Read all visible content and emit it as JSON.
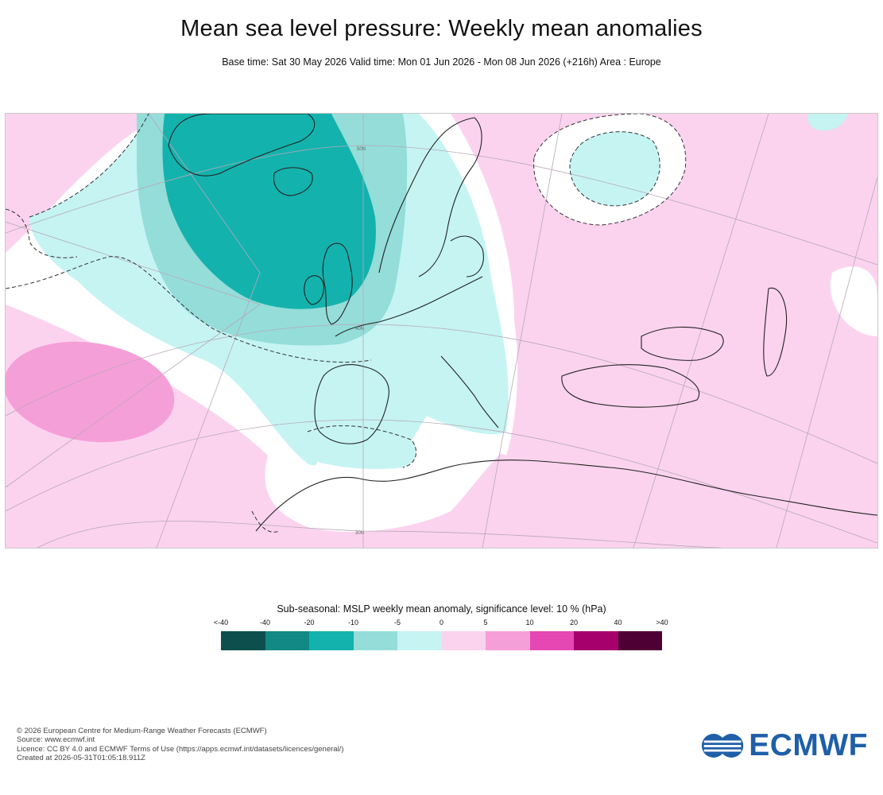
{
  "header": {
    "title": "Mean sea level pressure: Weekly mean anomalies",
    "subtitle": "Base time: Sat 30 May 2026 Valid time: Mon 01 Jun 2026 - Mon 08 Jun 2026 (+216h) Area : Europe"
  },
  "map": {
    "region": "Europe",
    "graticule_labels": [
      "50N",
      "40N",
      "30N"
    ],
    "anomaly_regions": [
      {
        "id": "north-atlantic-low",
        "category": "-20 to -10",
        "color": "#14b2ad"
      },
      {
        "id": "north-atlantic-halo",
        "category": "-10 to -5",
        "color": "#94ddd9"
      },
      {
        "id": "western-europe-negative",
        "category": "-5 to 0",
        "color": "#c5f4f3"
      },
      {
        "id": "azores-high",
        "category": "5 to 10",
        "color": "#f59fd8"
      },
      {
        "id": "barents-low",
        "category": "-5 to 0",
        "color": "#c5f4f3"
      },
      {
        "id": "background-positive",
        "category": "0 to 5",
        "color": "#fbd3ef"
      }
    ]
  },
  "legend": {
    "title": "Sub-seasonal: MSLP weekly mean anomaly, significance level: 10 % (hPa)",
    "ticks": [
      "<-40",
      "-40",
      "-20",
      "-10",
      "-5",
      "0",
      "5",
      "10",
      "20",
      "40",
      ">40"
    ],
    "colors": [
      "#0c4f4c",
      "#138985",
      "#14b2ad",
      "#94ddd9",
      "#c5f4f3",
      "#fbd3ef",
      "#f59fd8",
      "#e547b3",
      "#a6006d",
      "#4e0035"
    ]
  },
  "footer": {
    "line1": "© 2026 European Centre for Medium-Range Weather Forecasts (ECMWF)",
    "line2": "Source: www.ecmwf.int",
    "line3": "Licence: CC BY 4.0 and ECMWF Terms of Use (https://apps.ecmwf.int/datasets/licences/general/)",
    "line4": "Created at 2026-05-31T01:05:18.911Z"
  },
  "logo": {
    "text": "ECMWF",
    "color": "#1f5fa8"
  }
}
